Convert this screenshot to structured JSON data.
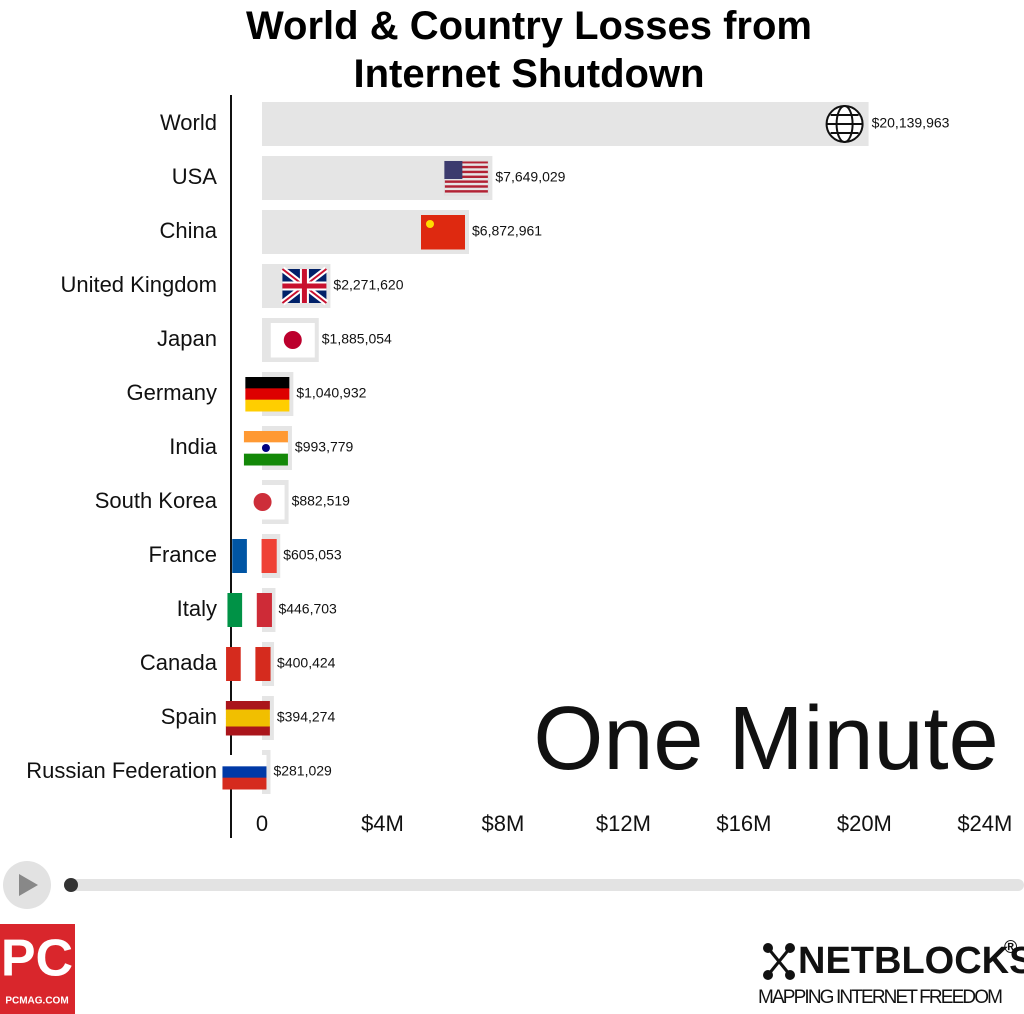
{
  "chart_data": {
    "type": "bar",
    "orientation": "horizontal",
    "title": "World & Country Losses from Internet Shutdown",
    "categories": [
      "World",
      "USA",
      "China",
      "United Kingdom",
      "Japan",
      "Germany",
      "India",
      "South Korea",
      "France",
      "Italy",
      "Canada",
      "Spain",
      "Russian Federation"
    ],
    "values": [
      20139963,
      7649029,
      6872961,
      2271620,
      1885054,
      1040932,
      993779,
      882519,
      605053,
      446703,
      400424,
      394274,
      281029
    ],
    "value_labels": [
      "$20,139,963",
      "$7,649,029",
      "$6,872,961",
      "$2,271,620",
      "$1,885,054",
      "$1,040,932",
      "$993,779",
      "$882,519",
      "$605,053",
      "$446,703",
      "$400,424",
      "$394,274",
      "$281,029"
    ],
    "color": "#e5e5e5",
    "xlim": [
      0,
      25300000
    ],
    "xticks": [
      0,
      {
        "value": 4000000,
        "label": "$4M"
      },
      {
        "value": 8000000,
        "label": "$8M"
      },
      {
        "value": 12000000,
        "label": "$12M"
      },
      {
        "value": 16000000,
        "label": "$16M"
      },
      {
        "value": 20000000,
        "label": "$20M"
      },
      {
        "value": 24000000,
        "label": "$24M"
      }
    ],
    "grid": false,
    "annotation": "One Minute",
    "branding": {
      "pc": "PC",
      "pcmag": "PCMAG.COM",
      "netblocks": "NETBLOCKS",
      "registered": "®",
      "tagline": "MAPPING INTERNET FREEDOM"
    }
  }
}
